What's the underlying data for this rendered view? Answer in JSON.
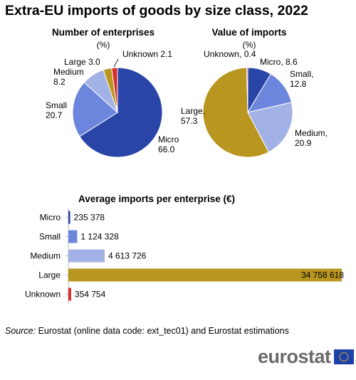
{
  "title": "Extra-EU imports of goods by size class, 2022",
  "unit_label": "(%)",
  "colors": {
    "micro": "#2a45a8",
    "small": "#6b86dc",
    "medium": "#a3b2e6",
    "large": "#b8961f",
    "unknown": "#d62f2f"
  },
  "chart_data": [
    {
      "type": "pie",
      "title": "Number of enterprises",
      "unit": "(%)",
      "categories": [
        "Micro",
        "Small",
        "Medium",
        "Large",
        "Unknown"
      ],
      "values": [
        66.0,
        20.7,
        8.2,
        3.0,
        2.1
      ],
      "value_labels": [
        "66.0",
        "20.7",
        "8.2",
        "3.0",
        "2.1"
      ]
    },
    {
      "type": "pie",
      "title": "Value of imports",
      "unit": "(%)",
      "categories": [
        "Micro",
        "Small",
        "Medium",
        "Large",
        "Unknown"
      ],
      "values": [
        8.6,
        12.8,
        20.9,
        57.3,
        0.4
      ],
      "value_labels": [
        "8.6",
        "12.8",
        "20.9",
        "57.3",
        "0.4"
      ]
    },
    {
      "type": "bar",
      "orientation": "horizontal",
      "title": "Average imports per enterprise (€)",
      "categories": [
        "Micro",
        "Small",
        "Medium",
        "Large",
        "Unknown"
      ],
      "values": [
        235378,
        1124328,
        4613726,
        34758618,
        354754
      ],
      "value_labels": [
        "235 378",
        "1 124 328",
        "4 613 726",
        "34 758 618",
        "354 754"
      ]
    }
  ],
  "source": {
    "label": "Source:",
    "text": "Eurostat (online data code: ext_tec01) and Eurostat estimations"
  },
  "logo": {
    "text": "eurostat"
  }
}
